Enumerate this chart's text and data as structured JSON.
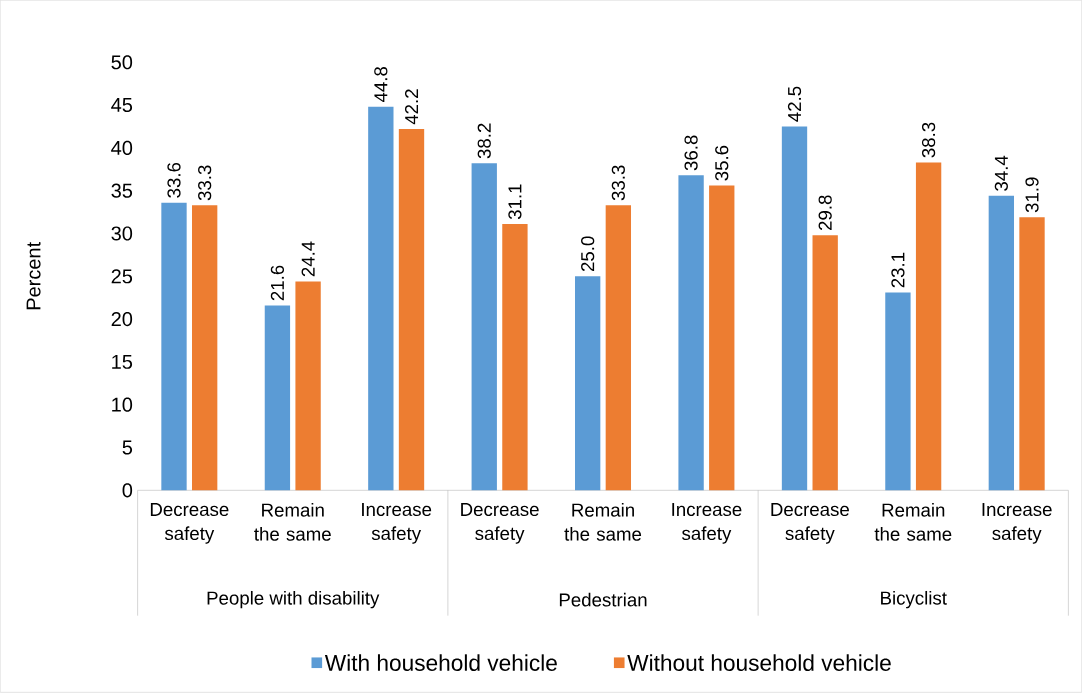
{
  "chart_data": {
    "type": "bar",
    "ylabel": "Percent",
    "categories": [
      "Decrease safety",
      "Remain the same",
      "Increase safety",
      "Decrease safety",
      "Remain the same",
      "Increase safety",
      "Decrease safety",
      "Remain the same",
      "Increase safety"
    ],
    "annotations": [
      "People with disability",
      "Pedestrian",
      "Bicyclist"
    ],
    "series": [
      {
        "name": "With household vehicle",
        "color": "#5b9bd5",
        "values": [
          33.6,
          21.6,
          44.8,
          38.2,
          25.0,
          36.8,
          42.5,
          23.1,
          34.4
        ],
        "value_labels": [
          "33.6",
          "21.6",
          "44.8",
          "38.2",
          "25.0",
          "36.8",
          "42.5",
          "23.1",
          "34.4"
        ]
      },
      {
        "name": "Without household vehicle",
        "color": "#ed7d31",
        "values": [
          33.3,
          24.4,
          42.2,
          31.1,
          33.3,
          35.6,
          29.8,
          38.3,
          31.9
        ],
        "value_labels": [
          "33.3",
          "24.4",
          "42.2",
          "31.1",
          "33.3",
          "35.6",
          "29.8",
          "38.3",
          "31.9"
        ]
      }
    ],
    "ylim": [
      0,
      50
    ],
    "yticks": [
      0,
      5,
      10,
      15,
      20,
      25,
      30,
      35,
      40,
      45,
      50
    ],
    "legend": "bottom"
  }
}
